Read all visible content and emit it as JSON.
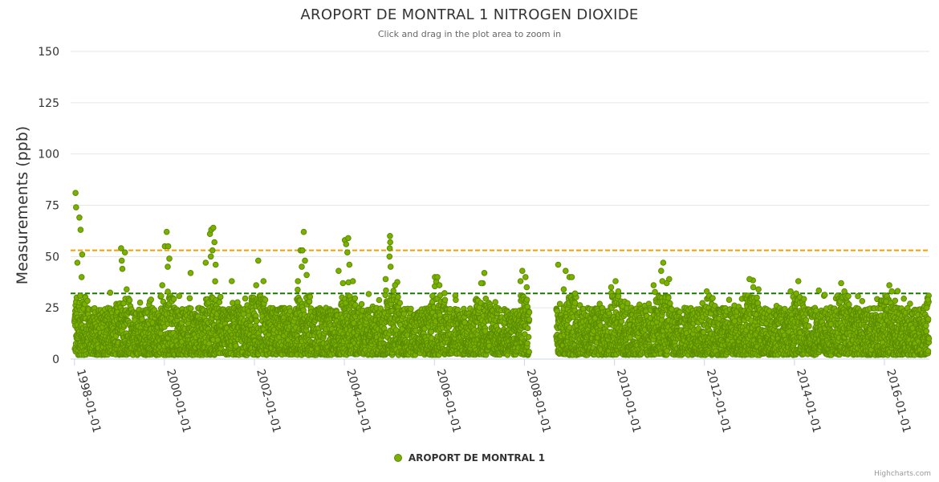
{
  "chart_data": {
    "type": "scatter",
    "title": "AROPORT DE MONTRAL 1 NITROGEN DIOXIDE",
    "subtitle": "Click and drag in the plot area to zoom in",
    "ylabel": "Measurements (ppb)",
    "xlabel": "",
    "ylim": [
      0,
      150
    ],
    "xlim": [
      "1997-12-01",
      "2016-12-31"
    ],
    "y_ticks": [
      0,
      25,
      50,
      75,
      100,
      125,
      150
    ],
    "x_ticks": [
      "1998-01-01",
      "2000-01-01",
      "2002-01-01",
      "2004-01-01",
      "2006-01-01",
      "2008-01-01",
      "2010-01-01",
      "2012-01-01",
      "2014-01-01",
      "2016-01-01"
    ],
    "reference_lines": [
      {
        "value": 53,
        "color": "#f0a000",
        "style": "dashed"
      },
      {
        "value": 32,
        "color": "#1a7a00",
        "style": "dashed"
      }
    ],
    "gap": [
      "2008-02-10",
      "2008-09-15"
    ],
    "series": [
      {
        "name": "AROPORT DE MONTRAL 1",
        "color": "#7cb000",
        "stroke": "#5a8c00",
        "typical_range": [
          2,
          25
        ],
        "points": [
          [
            "1998-01-10",
            81
          ],
          [
            "1998-01-14",
            74
          ],
          [
            "1998-02-10",
            69
          ],
          [
            "1998-02-20",
            63
          ],
          [
            "1998-03-05",
            51
          ],
          [
            "1998-01-25",
            47
          ],
          [
            "1998-02-28",
            40
          ],
          [
            "1999-01-15",
            54
          ],
          [
            "1999-02-15",
            52
          ],
          [
            "1999-01-20",
            48
          ],
          [
            "1999-01-25",
            44
          ],
          [
            "1999-03-01",
            34
          ],
          [
            "1999-12-15",
            36
          ],
          [
            "2000-01-20",
            62
          ],
          [
            "2000-01-05",
            55
          ],
          [
            "2000-02-01",
            55
          ],
          [
            "2000-02-10",
            49
          ],
          [
            "2000-01-28",
            45
          ],
          [
            "2000-08-01",
            42
          ],
          [
            "2001-01-05",
            61
          ],
          [
            "2001-01-15",
            63
          ],
          [
            "2001-02-01",
            64
          ],
          [
            "2001-02-10",
            57
          ],
          [
            "2001-01-25",
            53
          ],
          [
            "2001-01-12",
            50
          ],
          [
            "2000-12-01",
            47
          ],
          [
            "2001-02-20",
            46
          ],
          [
            "2001-07-01",
            38
          ],
          [
            "2002-02-01",
            48
          ],
          [
            "2002-03-15",
            38
          ],
          [
            "2002-01-15",
            36
          ],
          [
            "2003-01-10",
            53
          ],
          [
            "2003-01-25",
            53
          ],
          [
            "2003-02-05",
            62
          ],
          [
            "2003-02-15",
            48
          ],
          [
            "2003-01-20",
            45
          ],
          [
            "2003-03-01",
            41
          ],
          [
            "2002-12-20",
            38
          ],
          [
            "2003-11-15",
            43
          ],
          [
            "2004-01-05",
            58
          ],
          [
            "2004-01-15",
            56
          ],
          [
            "2004-02-01",
            59
          ],
          [
            "2004-01-25",
            52
          ],
          [
            "2004-02-10",
            46
          ],
          [
            "2003-12-20",
            37
          ],
          [
            "2004-03-10",
            38
          ],
          [
            "2005-01-05",
            60
          ],
          [
            "2005-01-07",
            57
          ],
          [
            "2005-01-03",
            54
          ],
          [
            "2005-01-01",
            50
          ],
          [
            "2005-01-10",
            45
          ],
          [
            "2004-12-01",
            39
          ],
          [
            "2005-02-15",
            36
          ],
          [
            "2006-01-05",
            40
          ],
          [
            "2006-01-25",
            40
          ],
          [
            "2006-02-10",
            36
          ],
          [
            "2007-02-10",
            42
          ],
          [
            "2007-01-15",
            37
          ],
          [
            "2007-12-15",
            43
          ],
          [
            "2008-01-10",
            40
          ],
          [
            "2007-12-01",
            38
          ],
          [
            "2008-01-20",
            35
          ],
          [
            "2008-10-01",
            46
          ],
          [
            "2008-12-01",
            43
          ],
          [
            "2009-01-01",
            40
          ],
          [
            "2009-01-20",
            40
          ],
          [
            "2008-11-15",
            34
          ],
          [
            "2009-02-15",
            32
          ],
          [
            "2010-01-10",
            38
          ],
          [
            "2010-02-01",
            33
          ],
          [
            "2011-02-01",
            47
          ],
          [
            "2011-01-15",
            43
          ],
          [
            "2011-01-25",
            38
          ],
          [
            "2010-11-15",
            36
          ],
          [
            "2011-03-01",
            37
          ],
          [
            "2012-01-20",
            33
          ],
          [
            "2013-01-01",
            39
          ],
          [
            "2013-02-01",
            35
          ],
          [
            "2013-03-15",
            34
          ],
          [
            "2014-02-01",
            38
          ],
          [
            "2013-12-01",
            33
          ],
          [
            "2014-01-15",
            32
          ],
          [
            "2015-01-15",
            37
          ],
          [
            "2015-02-10",
            33
          ],
          [
            "2016-02-10",
            36
          ],
          [
            "2016-01-15",
            28
          ],
          [
            "2016-03-01",
            33
          ],
          [
            "2016-12-20",
            29
          ],
          [
            "2016-12-10",
            25
          ]
        ]
      }
    ],
    "legend": {
      "placement": "bottom-center"
    }
  },
  "credits": "Highcharts.com"
}
